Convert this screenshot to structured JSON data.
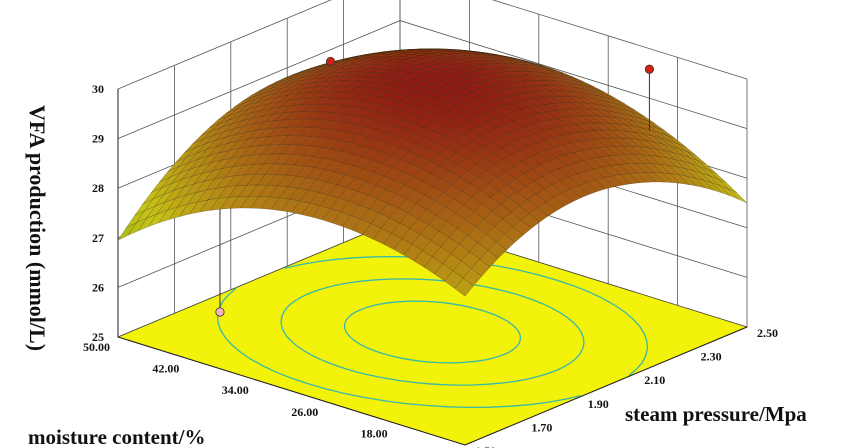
{
  "chart_data": {
    "type": "surface3d",
    "title": "",
    "zlabel": "VFA production (mmol/L)",
    "xlabel": "steam pressure/Mpa",
    "ylabel": "moisture content/%",
    "zticks": [
      "25",
      "26",
      "27",
      "28",
      "29",
      "30"
    ],
    "xticks": [
      "1.50",
      "1.70",
      "1.90",
      "2.10",
      "2.30",
      "2.50"
    ],
    "yticks": [
      "10.00",
      "18.00",
      "26.00",
      "34.00",
      "42.00",
      "50.00"
    ],
    "zlim": [
      25,
      30
    ],
    "xlim": [
      1.5,
      2.5
    ],
    "ylim": [
      10,
      50
    ],
    "surface_model": {
      "description": "quadratic response surface",
      "peak": {
        "steam_pressure": 2.0,
        "moisture_content": 30.0,
        "vfa": 30.0
      },
      "edge_values": {
        "sp_1.50_mc_10.00": 22.8,
        "sp_2.50_mc_50.00": 26.0,
        "sp_1.50_mc_50.00": 25.6,
        "sp_2.50_mc_10.00": 26.0
      }
    },
    "design_points": [
      {
        "steam_pressure": 2.1,
        "moisture_content": 45.0,
        "vfa": 29.4,
        "above_surface": true
      },
      {
        "steam_pressure": 2.4,
        "moisture_content": 18.0,
        "vfa": 30.0,
        "above_surface": true
      },
      {
        "steam_pressure": 1.8,
        "moisture_content": 48.0,
        "vfa": 24.9,
        "above_surface": false
      },
      {
        "steam_pressure": 2.45,
        "moisture_content": 34.0,
        "vfa": 25.9,
        "above_surface": false
      }
    ],
    "colors": {
      "floor": "#f2f20a",
      "contour": "#38b8a8",
      "surface_low": "#2f8a16",
      "surface_mid": "#c7c317",
      "surface_high": "#8f1a12",
      "point_high": "#d41e12",
      "point_low": "#f0b8b8"
    }
  }
}
